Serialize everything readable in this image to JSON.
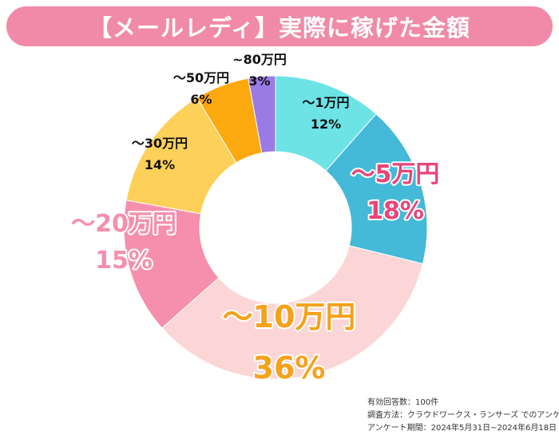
{
  "header": {
    "title": "【メールレディ】実際に稼げた金額"
  },
  "chart_data": {
    "type": "pie",
    "title": "【メールレディ】実際に稼げた金額",
    "unit": "%",
    "slices": [
      {
        "label": "〜1万円",
        "value": 12,
        "value_label": "12%",
        "color": "#6de3e6",
        "label_color": "#111111"
      },
      {
        "label": "〜5万円",
        "value": 18,
        "value_label": "18%",
        "color": "#44b9d8",
        "label_color": "#e8457a"
      },
      {
        "label": "〜10万円",
        "value": 36,
        "value_label": "36%",
        "color": "#fcd6d6",
        "label_color": "#f5a21b"
      },
      {
        "label": "〜20万円",
        "value": 15,
        "value_label": "15%",
        "color": "#f58fad",
        "label_color": "#f58fad"
      },
      {
        "label": "〜30万円",
        "value": 14,
        "value_label": "14%",
        "color": "#fdd05a",
        "label_color": "#111111"
      },
      {
        "label": "〜50万円",
        "value": 6,
        "value_label": "6%",
        "color": "#fca80f",
        "label_color": "#111111"
      },
      {
        "label": "~80万円",
        "value": 3,
        "value_label": "3%",
        "color": "#9a7be6",
        "label_color": "#111111"
      }
    ]
  },
  "footnote": {
    "respondents": "有効回答数：100件",
    "method": "調査方法：クラウドワークス・ランサーズ でのアンケート",
    "period": "アンケート期間：2024年5月31日~2024年6月18日"
  }
}
